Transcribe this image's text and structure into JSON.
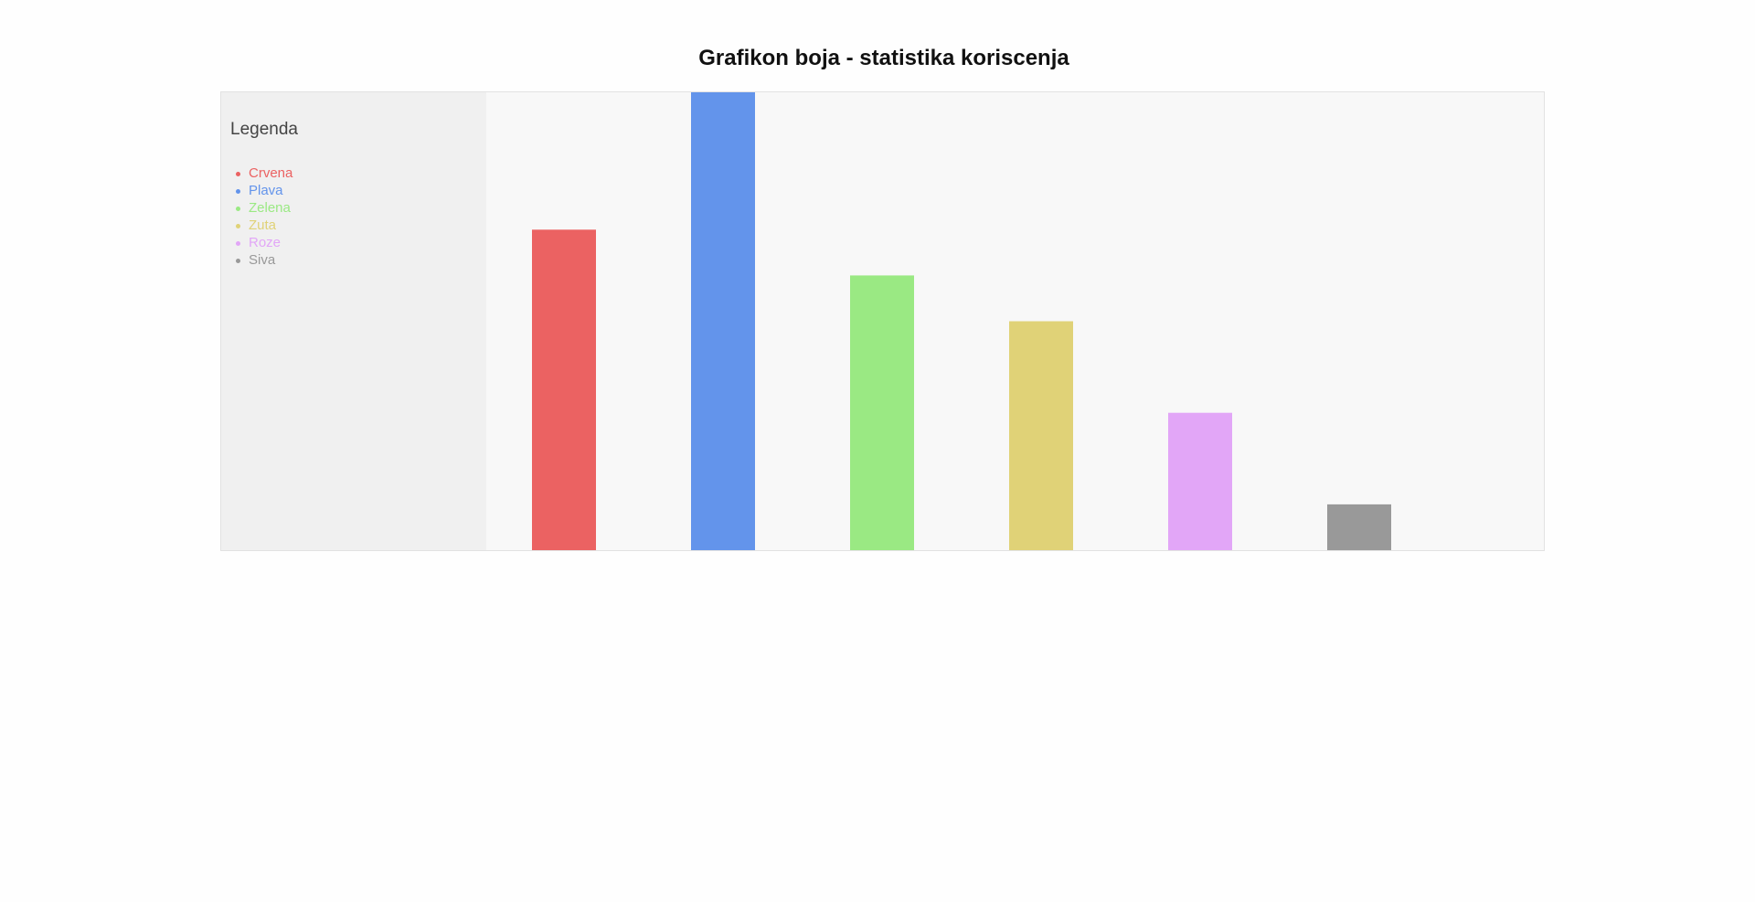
{
  "chart_data": {
    "type": "bar",
    "title": "Grafikon boja - statistika koriscenja",
    "legend_title": "Legenda",
    "legend_position": "left",
    "categories": [
      "Crvena",
      "Plava",
      "Zelena",
      "Zuta",
      "Roze",
      "Siva"
    ],
    "values": [
      7,
      10,
      6,
      5,
      3,
      1
    ],
    "colors": [
      "#eb6262",
      "#6394eb",
      "#9ae983",
      "#e0d277",
      "#e2a6f7",
      "#999999"
    ],
    "ylim": [
      0,
      10
    ],
    "grid": false,
    "xlabel": "",
    "ylabel": ""
  }
}
